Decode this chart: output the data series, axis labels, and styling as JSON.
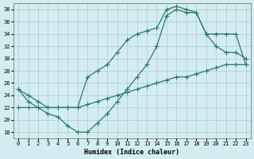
{
  "xlabel": "Humidex (Indice chaleur)",
  "bg_color": "#d4edf0",
  "grid_color": "#aacdd4",
  "line_color": "#2a7a6a",
  "xlim": [
    -0.5,
    23.5
  ],
  "ylim": [
    17,
    39
  ],
  "xticks": [
    0,
    1,
    2,
    3,
    4,
    5,
    6,
    7,
    8,
    9,
    10,
    11,
    12,
    13,
    14,
    15,
    16,
    17,
    18,
    19,
    20,
    21,
    22,
    23
  ],
  "yticks": [
    18,
    20,
    22,
    24,
    26,
    28,
    30,
    32,
    34,
    36,
    38
  ],
  "line1_x": [
    0,
    1,
    2,
    3,
    4,
    5,
    6,
    7,
    8,
    9,
    10,
    11,
    12,
    13,
    14,
    15,
    16,
    17,
    18,
    19,
    20,
    21,
    22,
    23
  ],
  "line1_y": [
    25,
    23,
    22,
    21,
    20.5,
    19,
    18,
    18,
    19.5,
    21,
    23,
    25,
    27,
    29,
    32,
    37,
    38,
    37.5,
    37.5,
    34,
    32,
    31,
    31,
    30
  ],
  "line2_x": [
    0,
    1,
    2,
    3,
    4,
    5,
    6,
    7,
    8,
    9,
    10,
    11,
    12,
    13,
    14,
    15,
    16,
    17,
    18,
    19,
    20,
    21,
    22,
    23
  ],
  "line2_y": [
    25,
    24,
    23,
    22,
    22,
    22,
    22,
    27,
    28,
    29,
    31,
    33,
    34,
    34.5,
    35,
    38,
    38.5,
    38,
    37.5,
    34,
    34,
    34,
    34,
    29
  ],
  "line3_x": [
    0,
    1,
    2,
    3,
    4,
    5,
    6,
    7,
    8,
    9,
    10,
    11,
    12,
    13,
    14,
    15,
    16,
    17,
    18,
    19,
    20,
    21,
    22,
    23
  ],
  "line3_y": [
    22,
    22,
    22,
    22,
    22,
    22,
    22,
    22.5,
    23,
    23.5,
    24,
    24.5,
    25,
    25.5,
    26,
    26.5,
    27,
    27,
    27.5,
    28,
    28.5,
    29,
    29,
    29
  ]
}
